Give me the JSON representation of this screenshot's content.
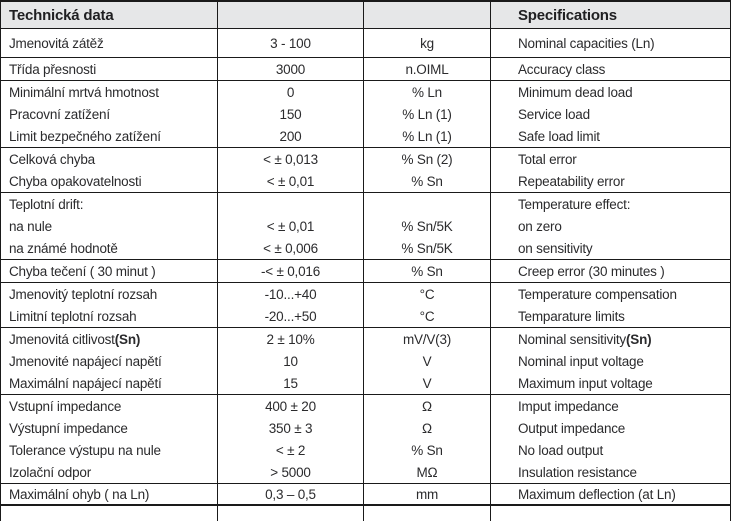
{
  "table": {
    "header": {
      "cz": "Technická data",
      "en": "Specifications"
    },
    "columns": [
      "czech_label",
      "value",
      "unit",
      "english_label"
    ],
    "colors": {
      "header_bg": "#e6e7e8",
      "border": "#1a1a1a",
      "text": "#2b2b2d"
    },
    "rows": [
      {
        "cz": "Jmenovitá zátěž",
        "value": "3 - 100",
        "unit": "kg",
        "en": "Nominal capacities (Ln)",
        "divider": "normal"
      },
      {
        "cz": "Třída přesnosti",
        "value": "3000",
        "unit": "n.OIML",
        "en": "Accuracy class",
        "divider": "normal"
      },
      {
        "cz": "Minimální mrtvá hmotnost",
        "value": "0",
        "unit": "% Ln",
        "en": "Minimum dead load"
      },
      {
        "cz": "Pracovní zatížení",
        "value": "150",
        "unit": "% Ln (1)",
        "en": "Service load"
      },
      {
        "cz": "Limit bezpečného zatížení",
        "value": "200",
        "unit": "% Ln (1)",
        "en": "Safe load limit",
        "divider": "normal"
      },
      {
        "cz": "Celková chyba",
        "value": "< ± 0,013",
        "unit": "% Sn (2)",
        "en": "Total error"
      },
      {
        "cz": "Chyba opakovatelnosti",
        "value": "< ± 0,01",
        "unit": "% Sn",
        "en": "Repeatability error",
        "divider": "normal"
      },
      {
        "cz": "Teplotní drift:",
        "value": "",
        "unit": "",
        "en": "Temperature effect:"
      },
      {
        "cz": "na nule",
        "value": "< ± 0,01",
        "unit": "% Sn/5K",
        "en": "on zero"
      },
      {
        "cz": "na známé hodnotě",
        "value": "< ± 0,006",
        "unit": "% Sn/5K",
        "en": "on sensitivity",
        "divider": "normal"
      },
      {
        "cz": "Chyba tečení ( 30 minut )",
        "value": "-< ± 0,016",
        "unit": "% Sn",
        "en": "Creep error (30 minutes )",
        "divider": "normal"
      },
      {
        "cz": "Jmenovitý teplotní rozsah",
        "value": "-10...+40",
        "unit": "°C",
        "en": "Temperature compensation"
      },
      {
        "cz": "Limitní teplotní rozsah",
        "value": "-20...+50",
        "unit": "°C",
        "en": "Temparature limits",
        "divider": "normal"
      },
      {
        "cz": "Jmenovitá citlivost ",
        "cz_bold": "(Sn)",
        "value": "2 ± 10%",
        "unit": "mV/V(3)",
        "en": "Nominal sensitivity ",
        "en_bold": "(Sn)"
      },
      {
        "cz": "Jmenovité napájecí napětí",
        "value": "10",
        "unit": "V",
        "en": "Nominal input voltage"
      },
      {
        "cz": "Maximální napájecí napětí",
        "value": "15",
        "unit": "V",
        "en": "Maximum input voltage",
        "divider": "normal"
      },
      {
        "cz": "Vstupní impedance",
        "value": "400 ± 20",
        "unit": "Ω",
        "en": "Imput impedance"
      },
      {
        "cz": "Výstupní impedance",
        "value": "350 ± 3",
        "unit": "Ω",
        "en": "Output impedance"
      },
      {
        "cz": "Tolerance výstupu na nule",
        "value": "< ± 2",
        "unit": "% Sn",
        "en": "No load output"
      },
      {
        "cz": "Izolační odpor",
        "value": "> 5000",
        "unit": "MΩ",
        "en": "Insulation resistance",
        "divider": "normal"
      },
      {
        "cz": "Maximální ohyb ( na Ln)",
        "value": "0,3 – 0,5",
        "unit": "mm",
        "en": "Maximum deflection (at Ln)",
        "divider": "thick"
      }
    ]
  }
}
